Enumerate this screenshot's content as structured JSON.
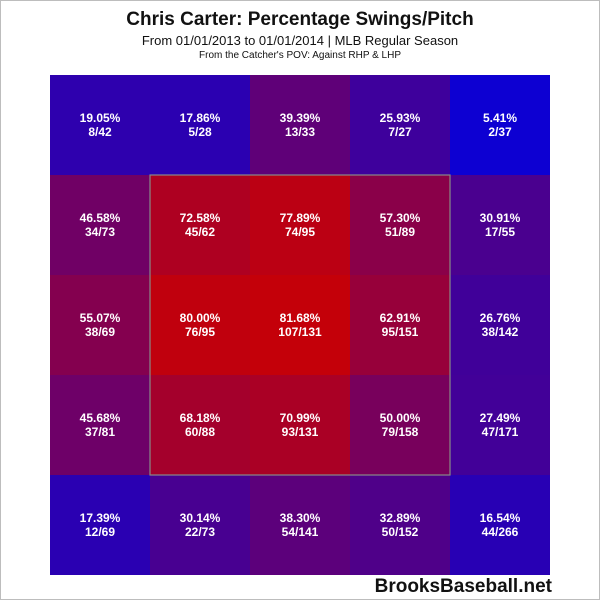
{
  "chart_data": {
    "type": "heatmap",
    "title": "Chris Carter: Percentage Swings/Pitch",
    "subtitle": "From 01/01/2013 to 01/01/2014 | MLB Regular Season",
    "note": "From the Catcher's POV:  Against RHP & LHP",
    "rows": [
      [
        {
          "pct": 19.05,
          "label": "19.05%",
          "count": "8/42"
        },
        {
          "pct": 17.86,
          "label": "17.86%",
          "count": "5/28"
        },
        {
          "pct": 39.39,
          "label": "39.39%",
          "count": "13/33"
        },
        {
          "pct": 25.93,
          "label": "25.93%",
          "count": "7/27"
        },
        {
          "pct": 5.41,
          "label": "5.41%",
          "count": "2/37"
        }
      ],
      [
        {
          "pct": 46.58,
          "label": "46.58%",
          "count": "34/73"
        },
        {
          "pct": 72.58,
          "label": "72.58%",
          "count": "45/62"
        },
        {
          "pct": 77.89,
          "label": "77.89%",
          "count": "74/95"
        },
        {
          "pct": 57.3,
          "label": "57.30%",
          "count": "51/89"
        },
        {
          "pct": 30.91,
          "label": "30.91%",
          "count": "17/55"
        }
      ],
      [
        {
          "pct": 55.07,
          "label": "55.07%",
          "count": "38/69"
        },
        {
          "pct": 80.0,
          "label": "80.00%",
          "count": "76/95"
        },
        {
          "pct": 81.68,
          "label": "81.68%",
          "count": "107/131"
        },
        {
          "pct": 62.91,
          "label": "62.91%",
          "count": "95/151"
        },
        {
          "pct": 26.76,
          "label": "26.76%",
          "count": "38/142"
        }
      ],
      [
        {
          "pct": 45.68,
          "label": "45.68%",
          "count": "37/81"
        },
        {
          "pct": 68.18,
          "label": "68.18%",
          "count": "60/88"
        },
        {
          "pct": 70.99,
          "label": "70.99%",
          "count": "93/131"
        },
        {
          "pct": 50.0,
          "label": "50.00%",
          "count": "79/158"
        },
        {
          "pct": 27.49,
          "label": "27.49%",
          "count": "47/171"
        }
      ],
      [
        {
          "pct": 17.39,
          "label": "17.39%",
          "count": "12/69"
        },
        {
          "pct": 30.14,
          "label": "30.14%",
          "count": "22/73"
        },
        {
          "pct": 38.3,
          "label": "38.30%",
          "count": "54/141"
        },
        {
          "pct": 32.89,
          "label": "32.89%",
          "count": "50/152"
        },
        {
          "pct": 16.54,
          "label": "16.54%",
          "count": "44/266"
        }
      ]
    ],
    "colors": {
      "low": "#0000e0",
      "high": "#cc0000",
      "zone_border": "#888888"
    }
  },
  "watermark": "BrooksBaseball.net"
}
